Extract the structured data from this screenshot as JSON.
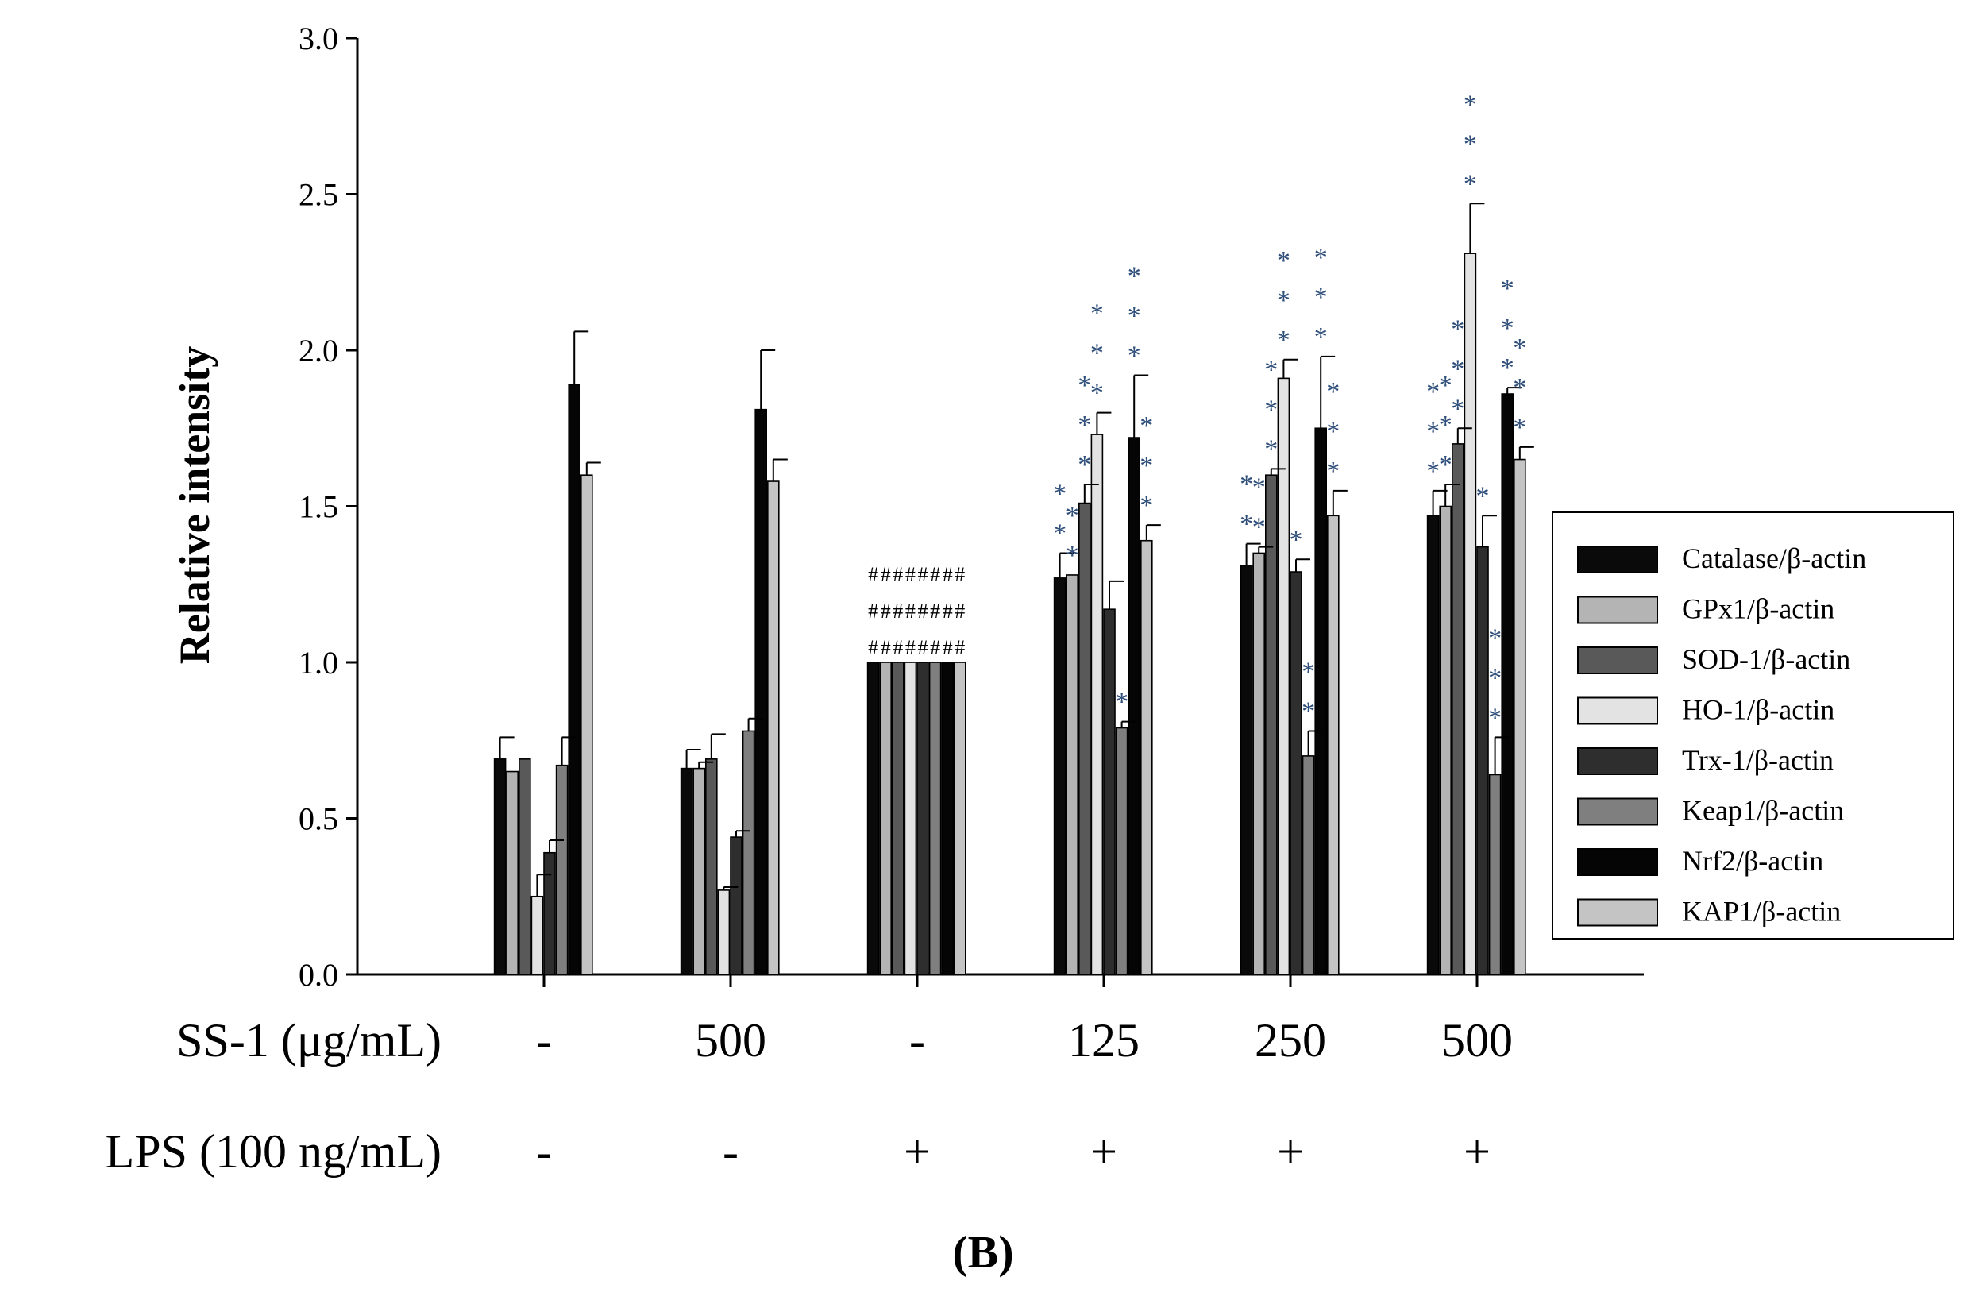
{
  "chart_data": {
    "type": "bar",
    "ylabel": "Relative intensity",
    "ylim": [
      0,
      3.0
    ],
    "yticks": [
      "0.0",
      "0.5",
      "1.0",
      "1.5",
      "2.0",
      "2.5",
      "3.0"
    ],
    "ytick_values": [
      0,
      0.5,
      1.0,
      1.5,
      2.0,
      2.5,
      3.0
    ],
    "panel_label": "(B)",
    "legend_position": "right",
    "row_labels": {
      "ss1": "SS-1 (μg/mL)",
      "lps": "LPS (100 ng/mL)"
    },
    "groups": [
      {
        "ss1": "-",
        "lps": "-"
      },
      {
        "ss1": "500",
        "lps": "-"
      },
      {
        "ss1": "-",
        "lps": "+"
      },
      {
        "ss1": "125",
        "lps": "+"
      },
      {
        "ss1": "250",
        "lps": "+"
      },
      {
        "ss1": "500",
        "lps": "+"
      }
    ],
    "series": [
      {
        "name": "Catalase/β-actin",
        "color": "#0a0a0a",
        "values": [
          0.69,
          0.66,
          1.0,
          1.27,
          1.31,
          1.47
        ],
        "errors": [
          0.07,
          0.06,
          0,
          0.08,
          0.07,
          0.08
        ],
        "marks": [
          "",
          "",
          "###",
          "**",
          "**",
          "***"
        ]
      },
      {
        "name": "GPx1/β-actin",
        "color": "#b4b4b4",
        "values": [
          0.65,
          0.66,
          1.0,
          1.28,
          1.35,
          1.5
        ],
        "errors": [
          0.0,
          0.02,
          0,
          0.0,
          0.02,
          0.07
        ],
        "marks": [
          "",
          "",
          "###",
          "**",
          "**",
          "***"
        ]
      },
      {
        "name": "SOD-1/β-actin",
        "color": "#595959",
        "values": [
          0.69,
          0.69,
          1.0,
          1.51,
          1.6,
          1.7
        ],
        "errors": [
          0.0,
          0.08,
          0,
          0.06,
          0.02,
          0.05
        ],
        "marks": [
          "",
          "",
          "###",
          "***",
          "***",
          "***"
        ]
      },
      {
        "name": "HO-1/β-actin",
        "color": "#e3e3e3",
        "values": [
          0.25,
          0.27,
          1.0,
          1.73,
          1.91,
          2.31
        ],
        "errors": [
          0.07,
          0.01,
          0,
          0.07,
          0.06,
          0.16
        ],
        "marks": [
          "",
          "",
          "###",
          "***",
          "***",
          "***"
        ]
      },
      {
        "name": "Trx-1/β-actin",
        "color": "#2e2e2e",
        "values": [
          0.39,
          0.44,
          1.0,
          1.17,
          1.29,
          1.37
        ],
        "errors": [
          0.04,
          0.02,
          0,
          0.09,
          0.04,
          0.1
        ],
        "marks": [
          "",
          "",
          "###",
          "",
          "*",
          "*"
        ]
      },
      {
        "name": "Keap1/β-actin",
        "color": "#7f7f7f",
        "values": [
          0.67,
          0.78,
          1.0,
          0.79,
          0.7,
          0.64
        ],
        "errors": [
          0.09,
          0.04,
          0,
          0.02,
          0.08,
          0.12
        ],
        "marks": [
          "",
          "",
          "###",
          "*",
          "**",
          "***"
        ]
      },
      {
        "name": "Nrf2/β-actin",
        "color": "#050505",
        "values": [
          1.89,
          1.81,
          1.0,
          1.72,
          1.75,
          1.86
        ],
        "errors": [
          0.17,
          0.19,
          0,
          0.2,
          0.23,
          0.02
        ],
        "marks": [
          "",
          "",
          "###",
          "***",
          "***",
          "***"
        ]
      },
      {
        "name": "KAP1/β-actin",
        "color": "#c4c4c4",
        "values": [
          1.6,
          1.58,
          1.0,
          1.39,
          1.47,
          1.65
        ],
        "errors": [
          0.04,
          0.07,
          0,
          0.05,
          0.08,
          0.04
        ],
        "marks": [
          "",
          "",
          "###",
          "***",
          "***",
          "***"
        ]
      }
    ]
  }
}
